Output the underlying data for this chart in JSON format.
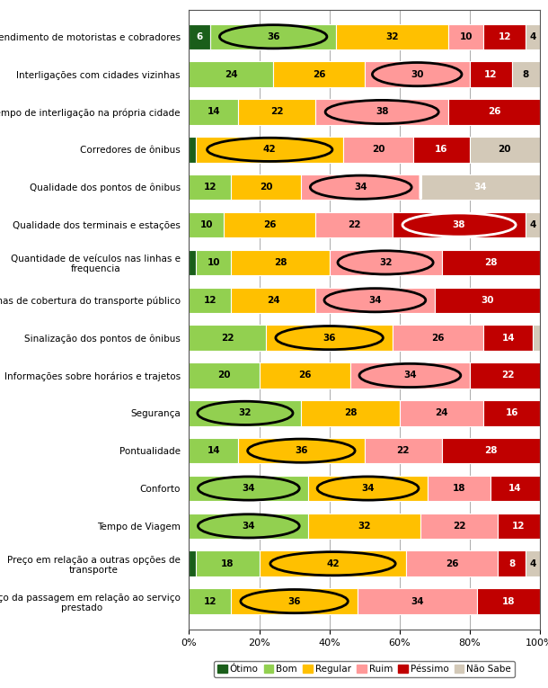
{
  "categories": [
    "Atendimento de motoristas e cobradores",
    "Interligações com cidades vizinhas",
    "Tempo de interligação na própria cidade",
    "Corredores de ônibus",
    "Qualidade dos pontos de ônibus",
    "Qualidade dos terminais e estações",
    "Quantidade de veículos nas linhas e\nfrequencia",
    "Linhas de cobertura do transporte público",
    "Sinalização dos pontos de ônibus",
    "Informações sobre horários e trajetos",
    "Segurança",
    "Pontualidade",
    "Conforto",
    "Tempo de Viagem",
    "Preço em relação a outras opções de\ntransporte",
    "Preço da passagem em relação ao serviço\nprestado"
  ],
  "data": [
    [
      6,
      36,
      32,
      10,
      12,
      4
    ],
    [
      0,
      24,
      26,
      30,
      12,
      8
    ],
    [
      0,
      14,
      22,
      38,
      26,
      0
    ],
    [
      2,
      0,
      42,
      20,
      16,
      20
    ],
    [
      0,
      12,
      20,
      34,
      0,
      34
    ],
    [
      0,
      10,
      26,
      22,
      38,
      4
    ],
    [
      2,
      10,
      28,
      32,
      28,
      0
    ],
    [
      0,
      12,
      24,
      34,
      30,
      0
    ],
    [
      0,
      22,
      36,
      26,
      14,
      2
    ],
    [
      0,
      20,
      26,
      34,
      22,
      0
    ],
    [
      0,
      32,
      28,
      24,
      16,
      0
    ],
    [
      0,
      14,
      36,
      22,
      28,
      0
    ],
    [
      0,
      34,
      34,
      18,
      14,
      0
    ],
    [
      0,
      34,
      32,
      22,
      12,
      0
    ],
    [
      2,
      18,
      42,
      26,
      8,
      4
    ],
    [
      0,
      12,
      36,
      34,
      18,
      0
    ]
  ],
  "colors": [
    "#1a5e1a",
    "#92d050",
    "#ffc000",
    "#ff9999",
    "#c00000",
    "#d3c9b8"
  ],
  "legend_labels": [
    "Ótimo",
    "Bom",
    "Regular",
    "Ruim",
    "Péssimo",
    "Não Sabe"
  ],
  "circled_info": [
    [
      0,
      1,
      "black"
    ],
    [
      1,
      3,
      "black"
    ],
    [
      2,
      3,
      "black"
    ],
    [
      3,
      2,
      "black"
    ],
    [
      4,
      3,
      "black"
    ],
    [
      4,
      4,
      "white"
    ],
    [
      5,
      4,
      "white"
    ],
    [
      6,
      3,
      "black"
    ],
    [
      7,
      3,
      "black"
    ],
    [
      8,
      2,
      "black"
    ],
    [
      9,
      3,
      "black"
    ],
    [
      10,
      1,
      "black"
    ],
    [
      11,
      2,
      "black"
    ],
    [
      12,
      1,
      "black"
    ],
    [
      12,
      2,
      "black"
    ],
    [
      13,
      1,
      "black"
    ],
    [
      14,
      2,
      "black"
    ],
    [
      15,
      2,
      "black"
    ]
  ],
  "text_colors": [
    [
      "white",
      "black",
      "black",
      "black",
      "white",
      "black"
    ],
    [
      "black",
      "black",
      "black",
      "black",
      "white",
      "black"
    ],
    [
      "black",
      "black",
      "black",
      "black",
      "white",
      "black"
    ],
    [
      "white",
      "black",
      "black",
      "black",
      "white",
      "black"
    ],
    [
      "black",
      "black",
      "black",
      "black",
      "black",
      "white"
    ],
    [
      "black",
      "black",
      "black",
      "black",
      "white",
      "black"
    ],
    [
      "white",
      "black",
      "black",
      "black",
      "white",
      "black"
    ],
    [
      "black",
      "black",
      "black",
      "black",
      "white",
      "black"
    ],
    [
      "black",
      "black",
      "black",
      "black",
      "white",
      "black"
    ],
    [
      "black",
      "black",
      "black",
      "black",
      "white",
      "black"
    ],
    [
      "black",
      "black",
      "black",
      "black",
      "white",
      "black"
    ],
    [
      "black",
      "black",
      "black",
      "black",
      "white",
      "black"
    ],
    [
      "black",
      "black",
      "black",
      "black",
      "white",
      "black"
    ],
    [
      "black",
      "black",
      "black",
      "black",
      "white",
      "black"
    ],
    [
      "white",
      "black",
      "black",
      "black",
      "white",
      "black"
    ],
    [
      "black",
      "black",
      "black",
      "black",
      "white",
      "black"
    ]
  ],
  "background_color": "#ffffff"
}
